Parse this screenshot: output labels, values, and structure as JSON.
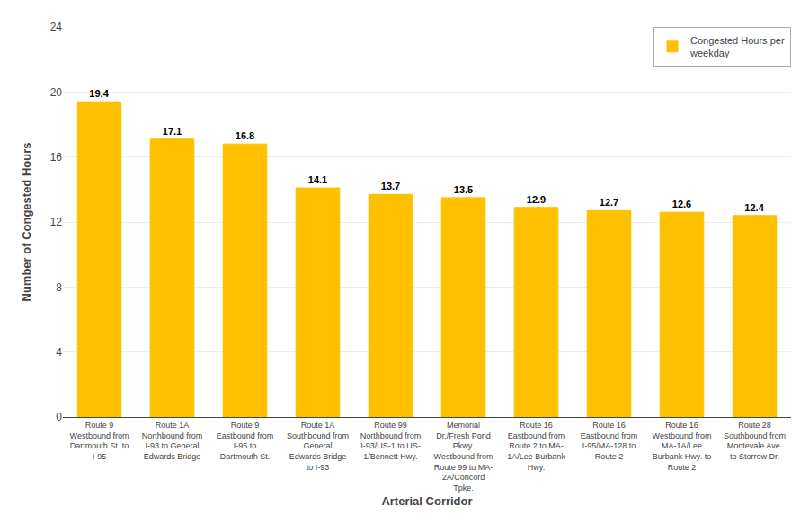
{
  "chart_data": {
    "type": "bar",
    "categories": [
      "Route 9\nWestbound from\nDartmouth St. to\nI-95",
      "Route 1A\nNorthbound from\nI-93 to General\nEdwards Bridge",
      "Route 9\nEastbound from\nI-95 to\nDartmouth St.",
      "Route 1A\nSouthbound from\nGeneral\nEdwards Bridge\nto I-93",
      "Route 99\nNorthbound from\nI-93/US-1 to US-\n1/Bennett Hwy.",
      "Memorial\nDr./Fresh Pond\nPkwy.\nWestbound from\nRoute 99 to MA-\n2A/Concord\nTpke.",
      "Route 16\nEastbound from\nRoute 2 to MA-\n1A/Lee Burbank\nHwy.",
      "Route 16\nEastbound from\nI-95/MA-128 to\nRoute 2",
      "Route 16\nWestbound from\nMA-1A/Lee\nBurbank Hwy. to\nRoute 2",
      "Route 28\nSouthbound from\nMontevale Ave.\nto Storrow Dr."
    ],
    "series": [
      {
        "name": "Congested Hours per\nweekday",
        "color": "#FFC000",
        "values": [
          19.4,
          17.1,
          16.8,
          14.1,
          13.7,
          13.5,
          12.9,
          12.7,
          12.6,
          12.4
        ]
      }
    ],
    "xlabel": "Arterial Corridor",
    "ylabel": "Number of Congested Hours",
    "ylim": [
      0,
      24
    ],
    "yticks": [
      0,
      4,
      8,
      12,
      16,
      20,
      24
    ],
    "grid": true,
    "legend": "upper right",
    "data_labels": true
  }
}
